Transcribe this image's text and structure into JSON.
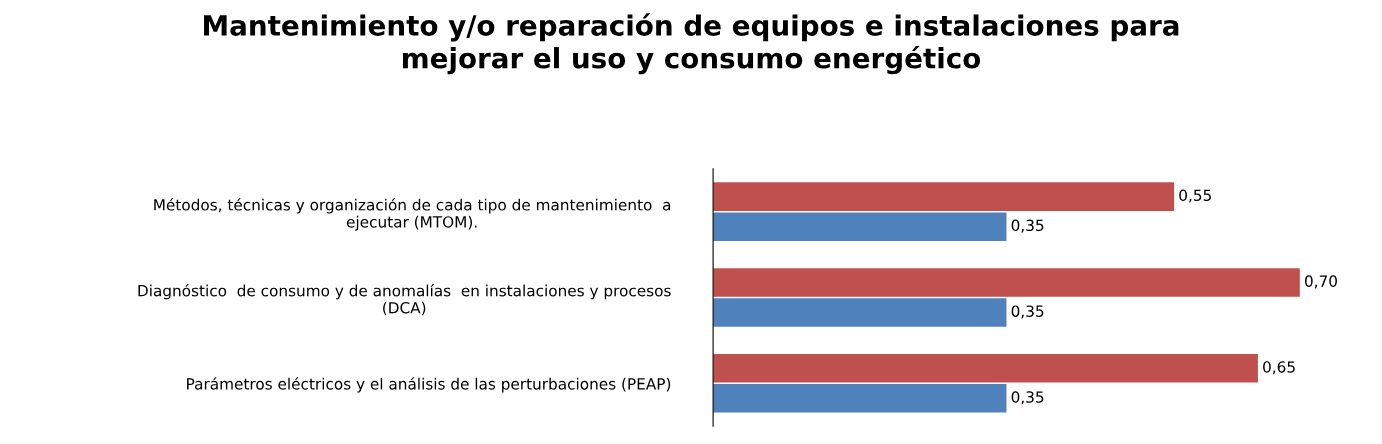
{
  "chart_data": {
    "type": "bar",
    "orientation": "horizontal",
    "title": "Mantenimiento y/o reparación de equipos e instalaciones para\nmejorar el uso y consumo energético",
    "categories": [
      "Métodos, técnicas y organización de cada tipo de mantenimiento  a\nejecutar (MTOM).",
      "Diagnóstico  de consumo y de anomalías  en instalaciones y procesos\n(DCA)",
      "Parámetros eléctricos y el análisis de las perturbaciones (PEAP)"
    ],
    "series": [
      {
        "color": "#c0504d",
        "values": [
          0.55,
          0.7,
          0.65
        ],
        "value_labels": [
          "0,55",
          "0,70",
          "0,65"
        ]
      },
      {
        "color": "#4f81bd",
        "values": [
          0.35,
          0.35,
          0.35
        ],
        "value_labels": [
          "0,35",
          "0,35",
          "0,35"
        ]
      }
    ],
    "grid": false,
    "tick_labels": "y"
  }
}
